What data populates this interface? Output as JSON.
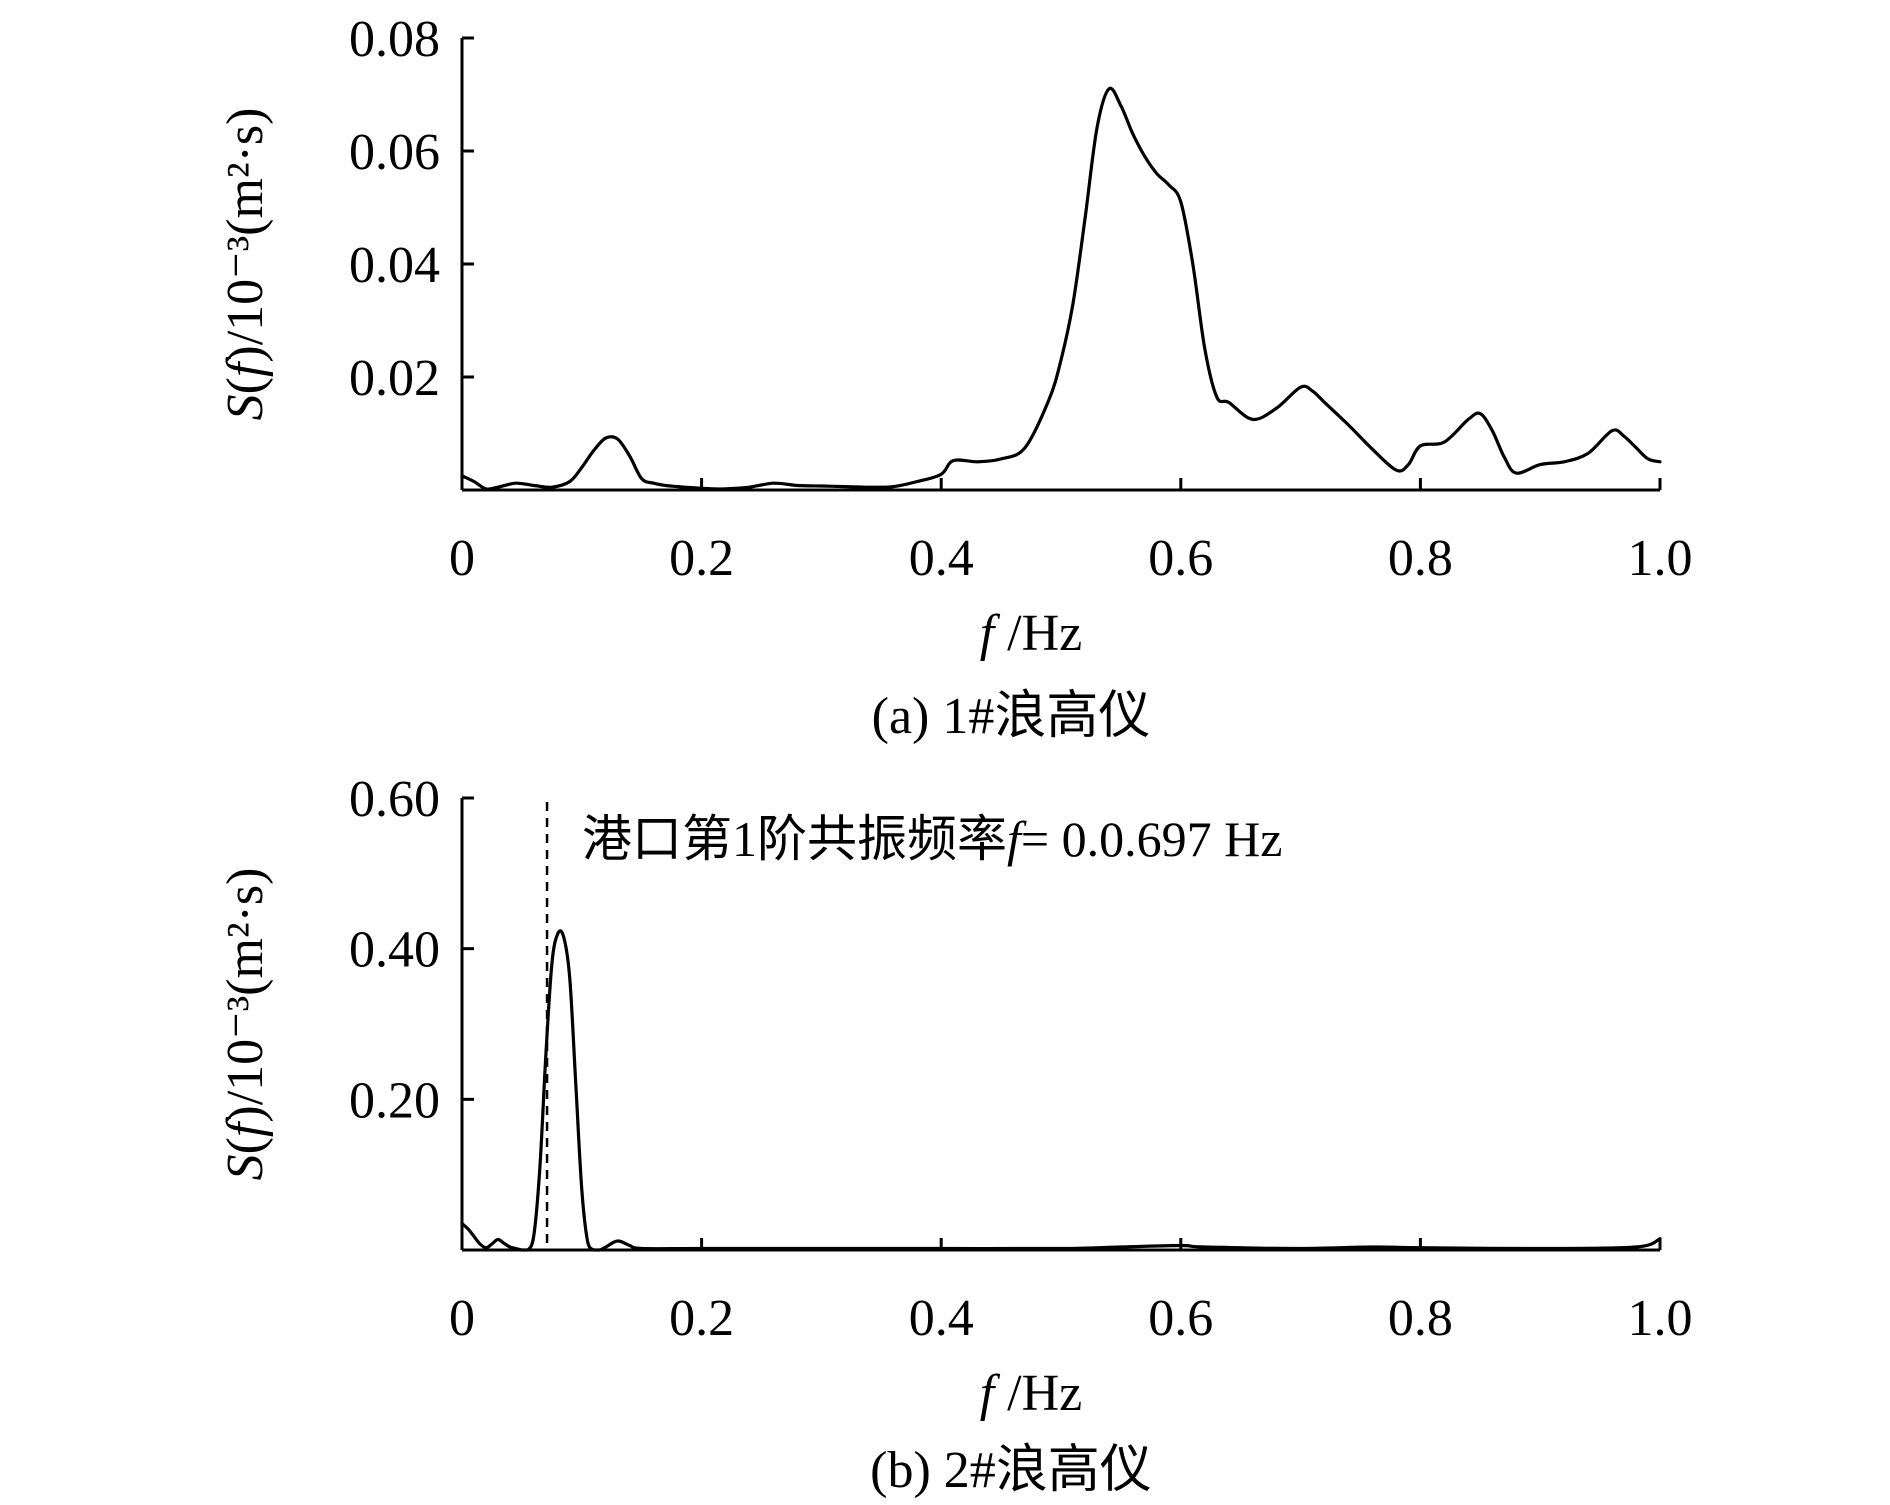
{
  "chart_data": [
    {
      "type": "line",
      "caption": "(a) 1#浪高仪",
      "xlabel": "f /Hz",
      "ylabel": "S(f)/10⁻³(m²·s)",
      "xlim": [
        0,
        1.0
      ],
      "ylim": [
        0,
        0.08
      ],
      "xticks": [
        0,
        0.2,
        0.4,
        0.6,
        0.8,
        1.0
      ],
      "xtick_labels": [
        "0",
        "0.2",
        "0.4",
        "0.6",
        "0.8",
        "1.0"
      ],
      "yticks": [
        0.02,
        0.04,
        0.06,
        0.08
      ],
      "ytick_labels": [
        "0.02",
        "0.04",
        "0.06",
        "0.08"
      ],
      "grid": false,
      "series": [
        {
          "x": [
            0,
            0.01,
            0.02,
            0.03,
            0.045,
            0.06,
            0.075,
            0.09,
            0.1,
            0.11,
            0.12,
            0.13,
            0.14,
            0.15,
            0.16,
            0.17,
            0.18,
            0.2,
            0.22,
            0.24,
            0.26,
            0.28,
            0.3,
            0.32,
            0.34,
            0.36,
            0.38,
            0.4,
            0.41,
            0.43,
            0.45,
            0.47,
            0.49,
            0.5,
            0.51,
            0.52,
            0.53,
            0.54,
            0.55,
            0.56,
            0.57,
            0.58,
            0.59,
            0.6,
            0.61,
            0.62,
            0.63,
            0.64,
            0.66,
            0.68,
            0.7,
            0.71,
            0.72,
            0.74,
            0.76,
            0.78,
            0.79,
            0.8,
            0.82,
            0.84,
            0.85,
            0.86,
            0.87,
            0.88,
            0.9,
            0.92,
            0.94,
            0.96,
            0.97,
            0.98,
            0.99,
            1.0
          ],
          "values": [
            0.0025,
            0.0015,
            0.0002,
            0.0005,
            0.0012,
            0.0008,
            0.0005,
            0.0015,
            0.004,
            0.007,
            0.0092,
            0.009,
            0.006,
            0.002,
            0.0012,
            0.0008,
            0.0006,
            0.0003,
            0.0002,
            0.0005,
            0.0012,
            0.0008,
            0.0007,
            0.0006,
            0.0005,
            0.0006,
            0.0015,
            0.0028,
            0.0052,
            0.005,
            0.0055,
            0.0075,
            0.016,
            0.023,
            0.033,
            0.048,
            0.064,
            0.071,
            0.068,
            0.063,
            0.059,
            0.056,
            0.054,
            0.051,
            0.04,
            0.025,
            0.0165,
            0.0155,
            0.0125,
            0.0145,
            0.0182,
            0.0175,
            0.0155,
            0.0115,
            0.0072,
            0.0035,
            0.0045,
            0.0078,
            0.0085,
            0.0125,
            0.0135,
            0.0105,
            0.0058,
            0.003,
            0.0045,
            0.005,
            0.0065,
            0.0105,
            0.0095,
            0.0075,
            0.0055,
            0.005
          ]
        }
      ]
    },
    {
      "type": "line",
      "caption": "(b) 2#浪高仪",
      "xlabel": "f /Hz",
      "ylabel": "S(f)/10⁻³(m²·s)",
      "xlim": [
        0,
        1.0
      ],
      "ylim": [
        0,
        0.6
      ],
      "xticks": [
        0,
        0.2,
        0.4,
        0.6,
        0.8,
        1.0
      ],
      "xtick_labels": [
        "0",
        "0.2",
        "0.4",
        "0.6",
        "0.8",
        "1.0"
      ],
      "yticks": [
        0.2,
        0.4,
        0.6
      ],
      "ytick_labels": [
        "0.20",
        "0.40",
        "0.60"
      ],
      "grid": false,
      "reference_line": {
        "x": 0.071
      },
      "annotation": {
        "text": "港口第1阶共振频率f= 0.0.697 Hz"
      },
      "series": [
        {
          "x": [
            0,
            0.005,
            0.01,
            0.015,
            0.02,
            0.025,
            0.03,
            0.035,
            0.04,
            0.045,
            0.05,
            0.055,
            0.06,
            0.065,
            0.07,
            0.075,
            0.08,
            0.085,
            0.09,
            0.095,
            0.1,
            0.105,
            0.11,
            0.115,
            0.12,
            0.13,
            0.14,
            0.15,
            0.2,
            0.3,
            0.4,
            0.5,
            0.55,
            0.6,
            0.62,
            0.7,
            0.76,
            0.8,
            0.9,
            0.98,
            1.0
          ],
          "values": [
            0.035,
            0.028,
            0.018,
            0.008,
            0.003,
            0.008,
            0.014,
            0.009,
            0.004,
            0.002,
            0.0,
            0.0,
            0.02,
            0.11,
            0.26,
            0.38,
            0.42,
            0.415,
            0.36,
            0.22,
            0.08,
            0.01,
            0.0,
            0.0,
            0.004,
            0.012,
            0.006,
            0.002,
            0.002,
            0.002,
            0.002,
            0.002,
            0.004,
            0.006,
            0.004,
            0.002,
            0.004,
            0.003,
            0.002,
            0.004,
            0.015
          ]
        }
      ]
    }
  ]
}
